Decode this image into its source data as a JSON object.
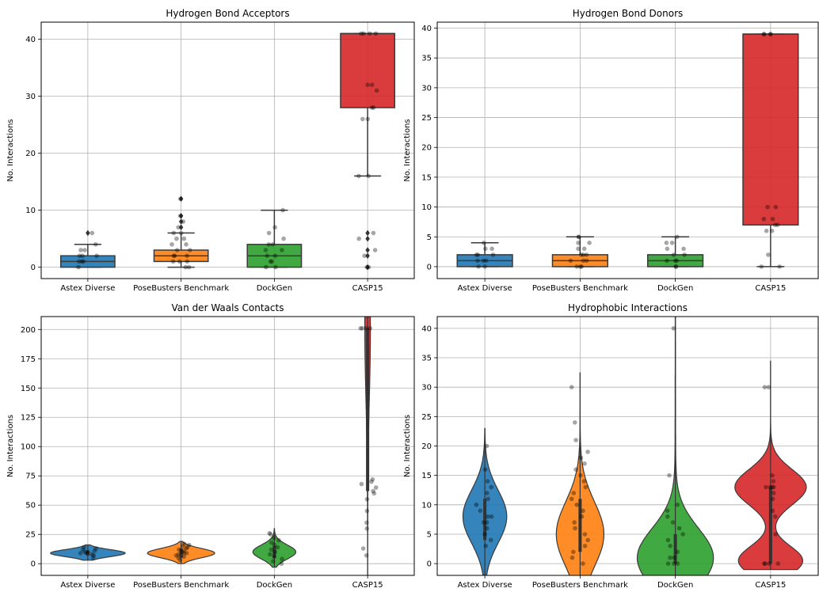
{
  "colors": {
    "blue": "#1f77b4",
    "orange": "#ff7f0e",
    "green": "#2ca02c",
    "red": "#d62728",
    "point": "#000000",
    "box_edge": "#3a3a3a",
    "grid": "#b0b0b0"
  },
  "chart_data": [
    {
      "id": "hba",
      "type": "box",
      "title": "Hydrogen Bond Acceptors",
      "ylabel": "No. Interactions",
      "categories": [
        "Astex Diverse",
        "PoseBusters Benchmark",
        "DockGen",
        "CASP15"
      ],
      "ylim": [
        -2,
        43
      ],
      "yticks": [
        0,
        10,
        20,
        30,
        40
      ],
      "grid": true,
      "boxes": [
        {
          "q1": 0,
          "median": 1,
          "q3": 2,
          "whislo": 0,
          "whishi": 4,
          "fliers": [
            6
          ]
        },
        {
          "q1": 1,
          "median": 2,
          "q3": 3,
          "whislo": 0,
          "whishi": 6,
          "fliers": [
            7,
            8,
            9,
            12
          ]
        },
        {
          "q1": 0,
          "median": 2,
          "q3": 4,
          "whislo": 0,
          "whishi": 10,
          "fliers": []
        },
        {
          "q1": 28,
          "median": 41,
          "q3": 41,
          "whislo": 16,
          "whishi": 41,
          "fliers": [
            0,
            2,
            3,
            5,
            6
          ]
        }
      ],
      "points": [
        [
          0,
          1,
          1,
          1,
          2,
          2,
          2,
          3,
          3,
          4,
          6
        ],
        [
          0,
          0,
          1,
          1,
          1,
          2,
          2,
          2,
          3,
          3,
          4,
          4,
          5,
          5,
          6,
          6,
          7,
          8,
          9,
          12
        ],
        [
          0,
          0,
          1,
          1,
          2,
          2,
          3,
          3,
          4,
          4,
          5,
          6,
          7,
          10
        ],
        [
          0,
          0,
          2,
          3,
          5,
          6,
          16,
          16,
          26,
          26,
          28,
          28,
          31,
          32,
          32,
          41,
          41,
          41,
          41
        ]
      ]
    },
    {
      "id": "hbd",
      "type": "box",
      "title": "Hydrogen Bond Donors",
      "ylabel": "No. Interactions",
      "categories": [
        "Astex Diverse",
        "PoseBusters Benchmark",
        "DockGen",
        "CASP15"
      ],
      "ylim": [
        -2,
        41
      ],
      "yticks": [
        0,
        5,
        10,
        15,
        20,
        25,
        30,
        35,
        40
      ],
      "grid": true,
      "boxes": [
        {
          "q1": 0,
          "median": 1,
          "q3": 2,
          "whislo": 0,
          "whishi": 4,
          "fliers": []
        },
        {
          "q1": 0,
          "median": 1,
          "q3": 2,
          "whislo": 0,
          "whishi": 5,
          "fliers": []
        },
        {
          "q1": 0,
          "median": 1,
          "q3": 2,
          "whislo": 0,
          "whishi": 5,
          "fliers": []
        },
        {
          "q1": 7,
          "median": 39,
          "q3": 39,
          "whislo": 0,
          "whishi": 39,
          "fliers": []
        }
      ],
      "points": [
        [
          0,
          0,
          1,
          1,
          1,
          2,
          2,
          2,
          3,
          3,
          4
        ],
        [
          0,
          0,
          0,
          1,
          1,
          1,
          2,
          2,
          2,
          3,
          3,
          4,
          4,
          5,
          5
        ],
        [
          0,
          0,
          1,
          1,
          1,
          2,
          2,
          3,
          3,
          4,
          4,
          5
        ],
        [
          0,
          0,
          2,
          6,
          6,
          7,
          7,
          8,
          8,
          10,
          10,
          39,
          39,
          39,
          39
        ]
      ]
    },
    {
      "id": "vdw",
      "type": "violin",
      "title": "Van der Waals Contacts",
      "ylabel": "No. Interactions",
      "categories": [
        "Astex Diverse",
        "PoseBusters Benchmark",
        "DockGen",
        "CASP15"
      ],
      "ylim": [
        -10,
        211
      ],
      "yticks": [
        0,
        25,
        50,
        75,
        100,
        125,
        150,
        175,
        200
      ],
      "grid": true,
      "violins": [
        {
          "ymin": 3,
          "ymax": 16,
          "center": 9,
          "spread": 3,
          "inner": [
            7,
            11
          ],
          "maxwidth": 0.8
        },
        {
          "ymin": 0,
          "ymax": 19,
          "center": 9,
          "spread": 4,
          "inner": [
            5,
            13
          ],
          "maxwidth": 0.72
        },
        {
          "ymin": -3,
          "ymax": 30,
          "center": 10,
          "spread": 6,
          "inner": [
            5,
            15
          ],
          "maxwidth": 0.46
        },
        {
          "ymin": -10,
          "ymax": 211,
          "center": 201,
          "spread": 60,
          "inner": [
            62,
            201
          ],
          "maxwidth": 0.06
        }
      ],
      "points": [
        [
          5,
          7,
          8,
          9,
          9,
          10,
          10,
          11,
          12,
          13,
          14
        ],
        [
          3,
          5,
          6,
          7,
          8,
          9,
          9,
          10,
          11,
          12,
          13,
          14,
          15,
          16,
          17
        ],
        [
          0,
          2,
          4,
          6,
          8,
          10,
          12,
          14,
          16,
          18,
          20,
          22,
          25,
          26
        ],
        [
          7,
          13,
          30,
          35,
          45,
          55,
          60,
          62,
          65,
          68,
          70,
          72,
          201,
          201,
          201,
          201
        ]
      ]
    },
    {
      "id": "hyd",
      "type": "violin",
      "title": "Hydrophobic Interactions",
      "ylabel": "No. Interactions",
      "categories": [
        "Astex Diverse",
        "PoseBusters Benchmark",
        "DockGen",
        "CASP15"
      ],
      "ylim": [
        -2,
        42
      ],
      "yticks": [
        0,
        5,
        10,
        15,
        20,
        25,
        30,
        35,
        40
      ],
      "grid": true,
      "violins": [
        {
          "ymin": -3,
          "ymax": 23,
          "center": 8,
          "spread": 4.5,
          "inner": [
            4,
            11
          ],
          "maxwidth": 0.46
        },
        {
          "ymin": -3,
          "ymax": 32.5,
          "center": 5,
          "spread": 5.5,
          "inner": [
            2,
            11
          ],
          "maxwidth": 0.5
        },
        {
          "ymin": -3,
          "ymax": 42,
          "center": 1,
          "spread": 5,
          "inner": [
            0,
            5
          ],
          "maxwidth": 0.8,
          "upper_tail": 2.8
        },
        {
          "ymin": -1,
          "ymax": 34.5,
          "modes": [
            {
              "center": 13,
              "spread": 3,
              "weight": 1
            },
            {
              "center": 0.5,
              "spread": 2.5,
              "weight": 0.9
            }
          ],
          "inner": [
            0,
            13
          ],
          "maxwidth": 0.75
        }
      ],
      "points": [
        [
          3,
          4,
          5,
          6,
          7,
          7,
          8,
          8,
          9,
          10,
          11,
          12,
          13,
          14,
          16,
          20
        ],
        [
          0,
          1,
          2,
          3,
          4,
          5,
          6,
          7,
          8,
          9,
          10,
          11,
          12,
          13,
          14,
          15,
          16,
          17,
          18,
          19,
          21,
          24,
          30
        ],
        [
          0,
          0,
          0,
          1,
          1,
          2,
          3,
          4,
          5,
          6,
          7,
          8,
          9,
          10,
          15,
          40
        ],
        [
          0,
          0,
          0,
          0,
          5,
          8,
          9,
          11,
          12,
          13,
          13,
          13,
          13,
          14,
          15,
          30,
          30
        ]
      ]
    }
  ]
}
